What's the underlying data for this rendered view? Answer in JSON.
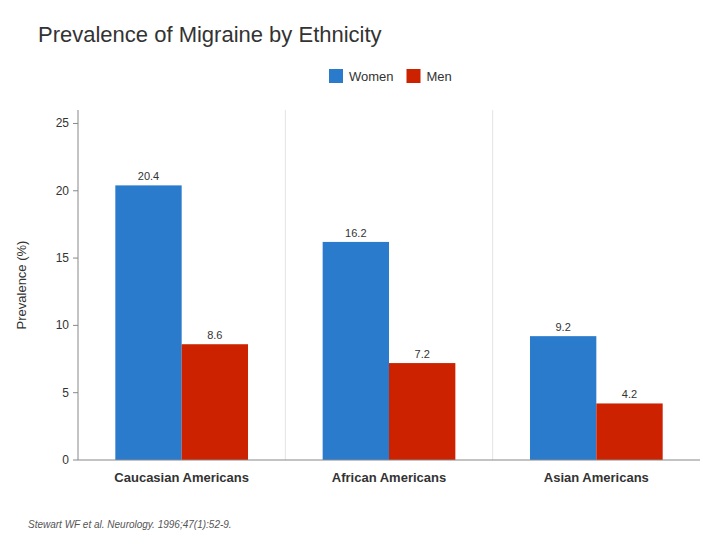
{
  "chart_data": {
    "type": "bar",
    "title": "Prevalence of Migraine by Ethnicity",
    "annotations": [
      "Stewart WF et al. Neurology. 1996;47(1):52-9."
    ],
    "categories": [
      "Caucasian Americans",
      "African Americans",
      "Asian Americans"
    ],
    "series": [
      {
        "name": "Women",
        "color": "#2B7BCC",
        "values": [
          20.4,
          16.2,
          9.2
        ]
      },
      {
        "name": "Men",
        "color": "#CC2200",
        "values": [
          8.6,
          7.2,
          4.2
        ]
      }
    ],
    "ylabel": "Prevalence (%)",
    "ylim": [
      0,
      26
    ],
    "yticks": [
      0,
      5,
      10,
      15,
      20,
      25
    ],
    "grid": false,
    "legend": "top",
    "data_labels": true
  }
}
